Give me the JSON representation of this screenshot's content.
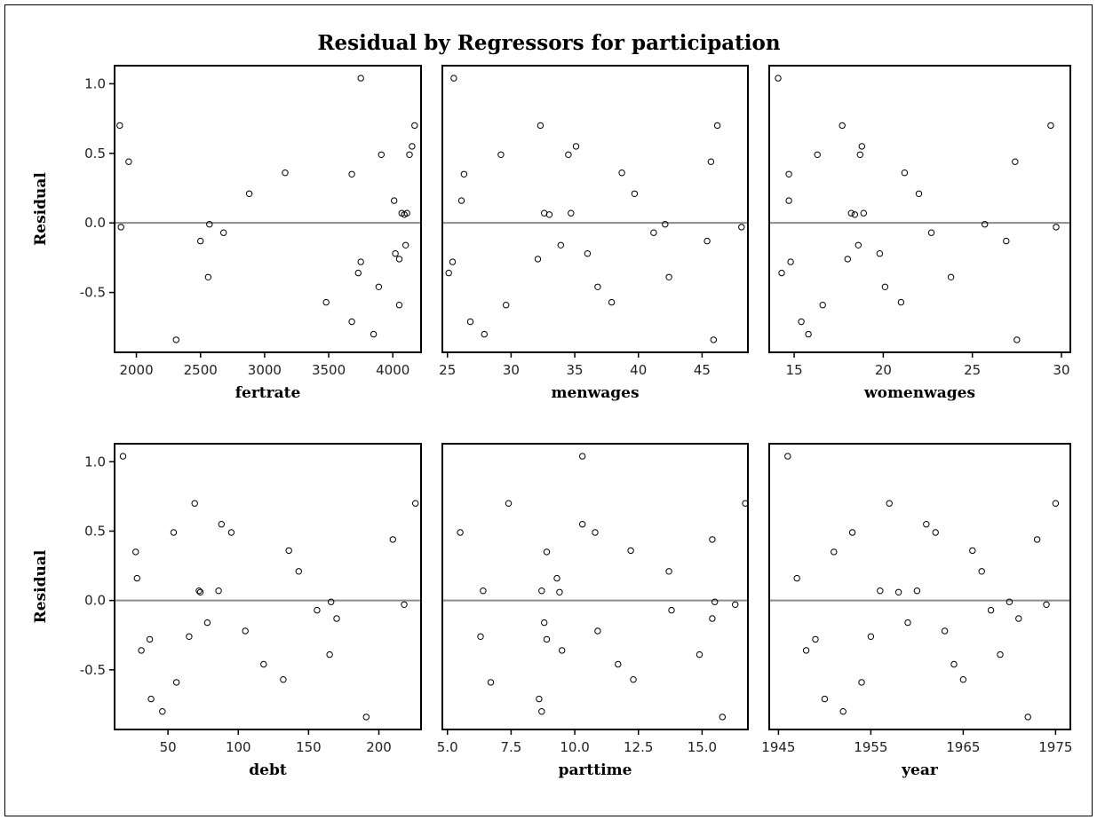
{
  "chart_data": {
    "type": "scatter",
    "title": "Residual by Regressors for participation",
    "ylabel": "Residual",
    "ylim": [
      -0.93,
      1.13
    ],
    "yticks": [
      -0.5,
      0.0,
      0.5,
      1.0
    ],
    "ytick_labels": [
      "-0.5",
      "0.0",
      "0.5",
      "1.0"
    ],
    "reference_line": 0,
    "residuals": [
      0.7,
      -0.03,
      0.44,
      -0.84,
      -0.13,
      -0.39,
      -0.01,
      -0.07,
      0.21,
      0.36,
      -0.57,
      0.35,
      -0.71,
      -0.36,
      -0.28,
      1.04,
      -0.8,
      -0.46,
      0.49,
      0.16,
      -0.22,
      -0.26,
      -0.59,
      0.07,
      0.06,
      0.07,
      -0.16,
      0.49,
      0.55,
      0.7
    ],
    "panels": [
      {
        "xlabel": "fertrate",
        "xlim": [
          1830,
          4220
        ],
        "xticks": [
          2000,
          2500,
          3000,
          3500,
          4000
        ],
        "xtick_labels": [
          "2000",
          "2500",
          "3000",
          "3500",
          "4000"
        ],
        "x": [
          1870,
          1880,
          1940,
          2310,
          2500,
          2560,
          2570,
          2680,
          2880,
          3160,
          3480,
          3680,
          3680,
          3730,
          3750,
          3750,
          3850,
          3890,
          3910,
          4010,
          4020,
          4050,
          4050,
          4070,
          4090,
          4110,
          4100,
          4130,
          4150,
          4170
        ]
      },
      {
        "xlabel": "menwages",
        "xlim": [
          24.6,
          48.6
        ],
        "xticks": [
          25,
          30,
          35,
          40,
          45
        ],
        "xtick_labels": [
          "25",
          "30",
          "35",
          "40",
          "45"
        ],
        "x": [
          46.2,
          48.1,
          45.7,
          45.9,
          45.4,
          42.4,
          42.1,
          41.2,
          39.7,
          38.7,
          37.9,
          26.3,
          26.8,
          25.1,
          25.4,
          25.5,
          27.9,
          36.8,
          29.2,
          26.1,
          36.0,
          32.1,
          29.6,
          32.6,
          33.0,
          34.7,
          33.9,
          34.5,
          35.1,
          32.3
        ]
      },
      {
        "xlabel": "womenwages",
        "xlim": [
          13.6,
          30.5
        ],
        "xticks": [
          15,
          20,
          25,
          30
        ],
        "xtick_labels": [
          "15",
          "20",
          "25",
          "30"
        ],
        "x": [
          29.4,
          29.7,
          27.4,
          27.5,
          26.9,
          23.8,
          25.7,
          22.7,
          22.0,
          21.2,
          21.0,
          14.7,
          15.4,
          14.3,
          14.8,
          14.1,
          15.8,
          20.1,
          16.3,
          14.7,
          19.8,
          18.0,
          16.6,
          18.2,
          18.4,
          18.9,
          18.6,
          18.7,
          18.8,
          17.7
        ]
      },
      {
        "xlabel": "debt",
        "xlim": [
          12,
          230
        ],
        "xticks": [
          50,
          100,
          150,
          200
        ],
        "xtick_labels": [
          "50",
          "100",
          "150",
          "200"
        ],
        "x": [
          226,
          218,
          210,
          191,
          170,
          165,
          166,
          156,
          143,
          136,
          132,
          27,
          38,
          31,
          37,
          18,
          46,
          118,
          54,
          28,
          105,
          65,
          56,
          72,
          73,
          86,
          78,
          95,
          88,
          69
        ]
      },
      {
        "xlabel": "parttime",
        "xlim": [
          4.8,
          16.8
        ],
        "xticks": [
          5.0,
          7.5,
          10.0,
          12.5,
          15.0
        ],
        "xtick_labels": [
          "5.0",
          "7.5",
          "10.0",
          "12.5",
          "15.0"
        ],
        "x": [
          16.7,
          16.3,
          15.4,
          15.8,
          15.4,
          14.9,
          15.5,
          13.8,
          13.7,
          12.2,
          12.3,
          8.9,
          8.6,
          9.5,
          8.9,
          10.3,
          8.7,
          11.7,
          5.5,
          9.3,
          10.9,
          6.3,
          6.7,
          6.4,
          9.4,
          8.7,
          8.8,
          10.8,
          10.3,
          7.4
        ]
      },
      {
        "xlabel": "year",
        "xlim": [
          1944,
          1976.6
        ],
        "xticks": [
          1945,
          1955,
          1965,
          1975
        ],
        "xtick_labels": [
          "1945",
          "1955",
          "1965",
          "1975"
        ],
        "x": [
          1975,
          1974,
          1973,
          1972,
          1971,
          1969,
          1970,
          1968,
          1967,
          1966,
          1965,
          1951,
          1950,
          1948,
          1949,
          1946,
          1952,
          1964,
          1953,
          1947,
          1963,
          1955,
          1954,
          1956,
          1958,
          1960,
          1959,
          1962,
          1961,
          1957
        ]
      }
    ]
  }
}
